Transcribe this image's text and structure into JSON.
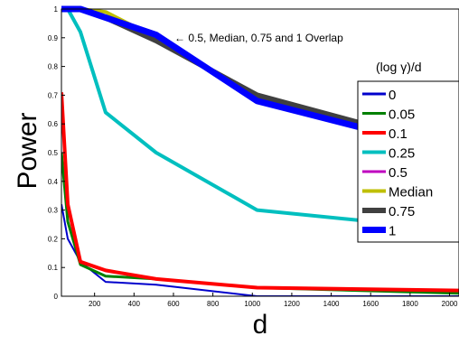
{
  "chart_data": {
    "type": "line",
    "xlabel": "d",
    "ylabel": "Power",
    "xlim": [
      32,
      2048
    ],
    "ylim": [
      0,
      1
    ],
    "x_ticks": [
      200,
      400,
      600,
      800,
      1000,
      1200,
      1400,
      1600,
      1800,
      2000
    ],
    "y_ticks": [
      0,
      0.1,
      0.2,
      0.3,
      0.4,
      0.5,
      0.6,
      0.7,
      0.8,
      0.9,
      1
    ],
    "x_tick_labels": [
      "200",
      "400",
      "600",
      "800",
      "1000",
      "1200",
      "1400",
      "1600",
      "1800",
      "2000"
    ],
    "y_tick_labels": [
      "0",
      "0.1",
      "0.2",
      "0.3",
      "0.4",
      "0.5",
      "0.6",
      "0.7",
      "0.8",
      "0.9",
      "1"
    ],
    "grid": false,
    "legend_title": "(log γ)/d",
    "legend_position": "right",
    "annotation": "← 0.5, Median, 0.75 and 1 Overlap",
    "series": [
      {
        "name": "0",
        "color": "#0000cc",
        "x": [
          32,
          64,
          128,
          256,
          512,
          1024,
          2048
        ],
        "values": [
          0.32,
          0.2,
          0.12,
          0.05,
          0.04,
          0.0,
          0.0
        ]
      },
      {
        "name": "0.05",
        "color": "#008000",
        "x": [
          32,
          64,
          128,
          256,
          512,
          1024,
          2048
        ],
        "values": [
          0.5,
          0.26,
          0.11,
          0.07,
          0.06,
          0.03,
          0.01
        ]
      },
      {
        "name": "0.1",
        "color": "#ff0000",
        "x": [
          32,
          64,
          128,
          256,
          512,
          1024,
          2048
        ],
        "values": [
          0.71,
          0.32,
          0.12,
          0.09,
          0.06,
          0.03,
          0.02
        ]
      },
      {
        "name": "0.25",
        "color": "#00bfbf",
        "x": [
          32,
          64,
          128,
          256,
          512,
          1024,
          2048
        ],
        "values": [
          1.0,
          1.0,
          0.92,
          0.64,
          0.5,
          0.3,
          0.23
        ]
      },
      {
        "name": "0.5",
        "color": "#bf00bf",
        "x": [
          32,
          64,
          128,
          256,
          512,
          1024,
          2048
        ],
        "values": [
          1.0,
          1.0,
          1.0,
          0.97,
          0.9,
          0.69,
          0.49
        ]
      },
      {
        "name": "Median",
        "color": "#bfbf00",
        "x": [
          32,
          64,
          128,
          256,
          512,
          1024,
          2048
        ],
        "values": [
          1.0,
          1.0,
          1.0,
          0.99,
          0.9,
          0.69,
          0.5
        ]
      },
      {
        "name": "0.75",
        "color": "#404040",
        "x": [
          32,
          64,
          128,
          256,
          512,
          1024,
          2048
        ],
        "values": [
          1.0,
          1.0,
          1.0,
          0.97,
          0.89,
          0.7,
          0.51
        ]
      },
      {
        "name": "1",
        "color": "#0000ff",
        "x": [
          32,
          64,
          128,
          256,
          512,
          1024,
          2048
        ],
        "values": [
          1.0,
          1.0,
          1.0,
          0.97,
          0.91,
          0.68,
          0.5
        ]
      }
    ]
  }
}
